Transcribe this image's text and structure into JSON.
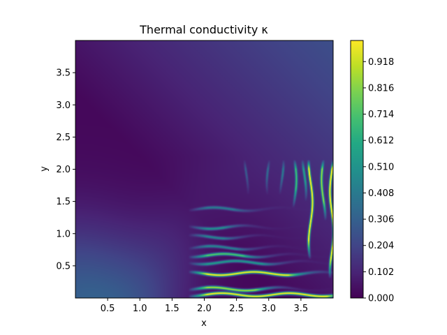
{
  "chart_data": {
    "type": "heatmap",
    "title": "Thermal conductivity κ",
    "xlabel": "x",
    "ylabel": "y",
    "xlim": [
      0.0,
      4.0
    ],
    "ylim": [
      0.0,
      4.0
    ],
    "x_ticks": [
      0.5,
      1.0,
      1.5,
      2.0,
      2.5,
      3.0,
      3.5
    ],
    "x_tick_labels": [
      "0.5",
      "1.0",
      "1.5",
      "2.0",
      "2.5",
      "3.0",
      "3.5"
    ],
    "y_ticks": [
      0.5,
      1.0,
      1.5,
      2.0,
      2.5,
      3.0,
      3.5
    ],
    "y_tick_labels": [
      "0.5",
      "1.0",
      "1.5",
      "2.0",
      "2.5",
      "3.0",
      "3.5"
    ],
    "colormap": "viridis",
    "colorbar": {
      "min": 0.0,
      "max": 1.0,
      "ticks": [
        0.0,
        0.102,
        0.204,
        0.306,
        0.408,
        0.51,
        0.612,
        0.714,
        0.816,
        0.918
      ],
      "tick_labels": [
        "0.000",
        "0.102",
        "0.204",
        "0.306",
        "0.408",
        "0.510",
        "0.612",
        "0.714",
        "0.816",
        "0.918"
      ]
    },
    "features": {
      "background_gradient": "low values (~0.05-0.3), highest near origin and top-right corner",
      "horizontal_streaks": [
        {
          "y": 0.05,
          "x_start": 1.9,
          "x_end": 3.9,
          "peak": 1.0
        },
        {
          "y": 0.14,
          "x_start": 1.9,
          "x_end": 2.8,
          "peak": 0.85
        },
        {
          "y": 0.38,
          "x_start": 1.9,
          "x_end": 3.3,
          "peak": 1.0
        },
        {
          "y": 0.55,
          "x_start": 1.9,
          "x_end": 2.9,
          "peak": 0.5
        },
        {
          "y": 0.66,
          "x_start": 1.9,
          "x_end": 2.6,
          "peak": 0.7
        },
        {
          "y": 0.78,
          "x_start": 1.9,
          "x_end": 2.5,
          "peak": 0.4
        },
        {
          "y": 0.95,
          "x_start": 1.9,
          "x_end": 2.3,
          "peak": 0.4
        },
        {
          "y": 1.1,
          "x_start": 1.9,
          "x_end": 2.3,
          "peak": 0.45
        },
        {
          "y": 1.38,
          "x_start": 1.9,
          "x_end": 2.45,
          "peak": 0.35
        }
      ],
      "vertical_streaks": [
        {
          "x": 3.65,
          "y_start": 0.7,
          "y_end": 2.1,
          "peak": 1.0
        },
        {
          "x": 3.98,
          "y_start": 0.4,
          "y_end": 2.1,
          "peak": 1.0
        },
        {
          "x": 3.85,
          "y_start": 1.3,
          "y_end": 2.1,
          "peak": 0.75
        },
        {
          "x": 3.4,
          "y_start": 1.5,
          "y_end": 2.1,
          "peak": 0.6
        },
        {
          "x": 3.55,
          "y_start": 1.6,
          "y_end": 2.1,
          "peak": 0.45
        },
        {
          "x": 3.2,
          "y_start": 1.7,
          "y_end": 2.1,
          "peak": 0.3
        },
        {
          "x": 3.0,
          "y_start": 1.7,
          "y_end": 2.1,
          "peak": 0.25
        },
        {
          "x": 2.65,
          "y_start": 1.7,
          "y_end": 2.1,
          "peak": 0.2
        }
      ]
    }
  }
}
